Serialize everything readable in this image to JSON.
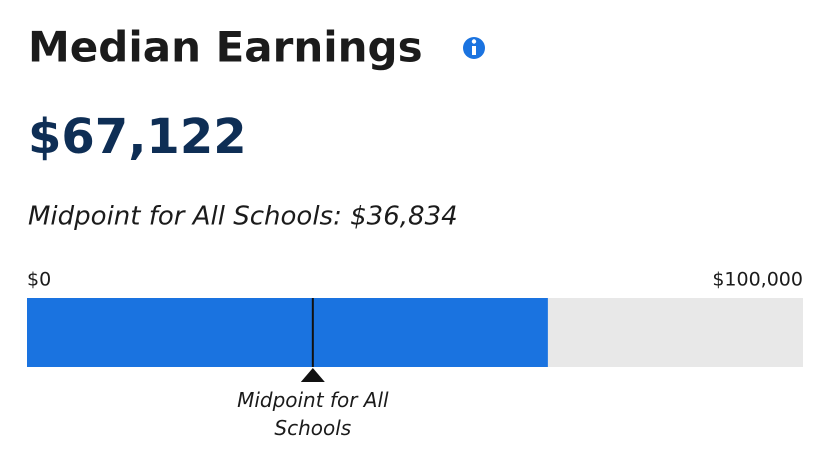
{
  "chart_data": {
    "type": "bar",
    "title": "Median Earnings",
    "values": [
      67122
    ],
    "value_labels": [
      "$67,122"
    ],
    "color": "#1a73e0",
    "track_color": "#e8e8e8",
    "subtitle": "Midpoint for All Schools: $36,834",
    "reference": {
      "value": 36834,
      "label": "Midpoint for All Schools"
    },
    "xlim": [
      0,
      100000
    ],
    "xticks": [
      {
        "value": 0,
        "label": "$0"
      },
      {
        "value": 100000,
        "label": "$100,000"
      }
    ]
  }
}
